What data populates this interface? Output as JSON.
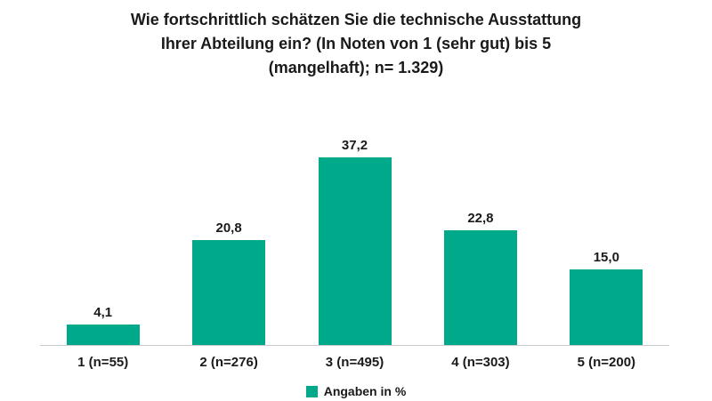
{
  "title_lines": {
    "line1": "Wie fortschrittlich schätzen Sie die technische Ausstattung",
    "line2": "Ihrer Abteilung ein? (In Noten von 1 (sehr gut) bis 5",
    "line3": "(mangelhaft); n= 1.329)"
  },
  "legend": {
    "label": "Angaben in %"
  },
  "colors": {
    "bar": "#00a98a",
    "axis": "#c8c8c8",
    "text": "#1a1a1a"
  },
  "chart_data": {
    "type": "bar",
    "title": "Wie fortschrittlich schätzen Sie die technische Ausstattung Ihrer Abteilung ein? (In Noten von 1 (sehr gut) bis 5 (mangelhaft); n= 1.329)",
    "categories": [
      "1 (n=55)",
      "2 (n=276)",
      "3 (n=495)",
      "4 (n=303)",
      "5 (n=200)"
    ],
    "values": [
      4.1,
      20.8,
      37.2,
      22.8,
      15.0
    ],
    "value_labels": [
      "4,1",
      "20,8",
      "37,2",
      "22,8",
      "15,0"
    ],
    "xlabel": "",
    "ylabel": "",
    "ylim": [
      0,
      41.6
    ],
    "grid": false,
    "legend_entries": [
      "Angaben in %"
    ],
    "legend_position": "bottom",
    "bar_color": "#00a98a"
  }
}
